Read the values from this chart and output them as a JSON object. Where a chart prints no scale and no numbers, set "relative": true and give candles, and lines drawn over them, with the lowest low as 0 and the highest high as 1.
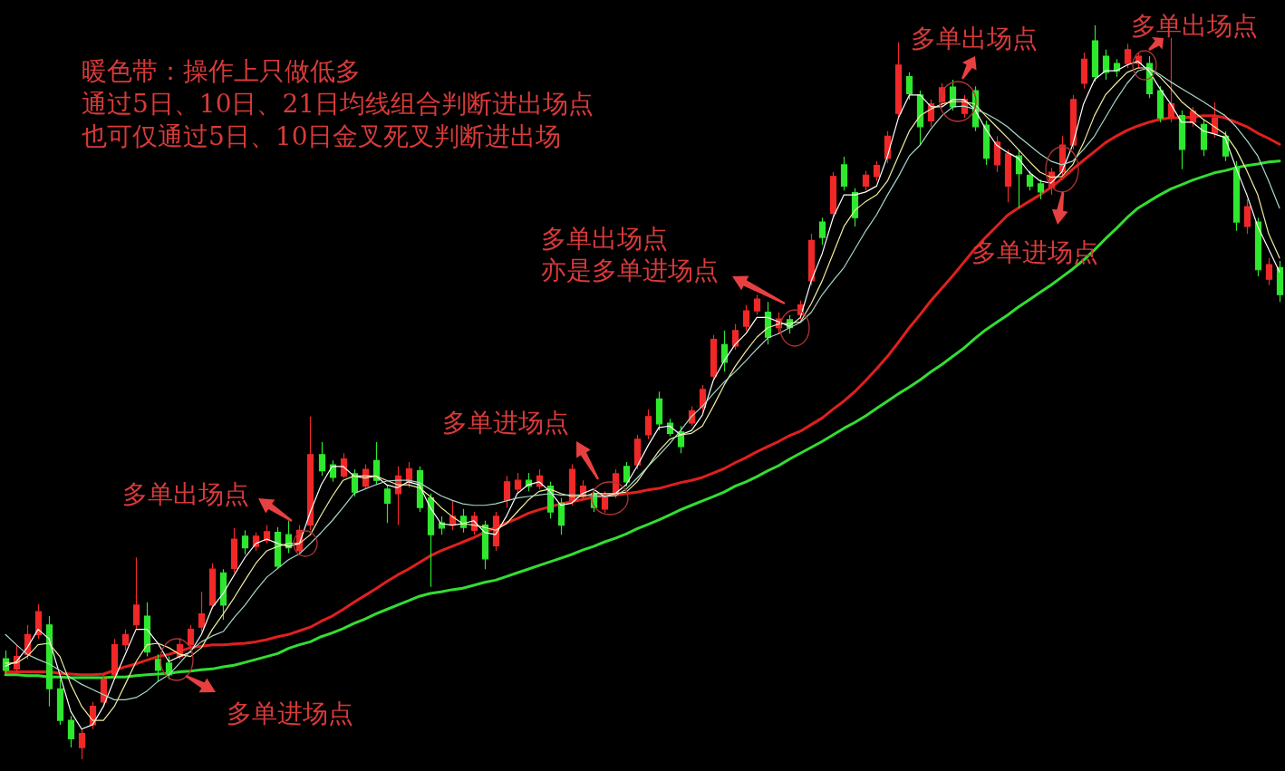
{
  "chart_data": {
    "type": "candlestick",
    "relative": true,
    "categories": [
      null,
      null,
      null,
      null,
      null,
      null,
      null,
      null,
      null,
      null,
      null,
      null,
      null,
      null,
      null,
      null,
      null,
      null,
      null,
      null,
      null,
      null,
      null,
      null,
      null,
      null,
      null,
      null,
      null,
      null,
      null,
      null,
      null,
      null,
      null,
      null,
      null,
      null,
      null,
      null,
      null,
      null,
      null,
      null,
      null,
      null,
      null,
      null,
      null,
      null,
      null,
      null,
      null,
      null,
      null,
      null,
      null,
      null,
      null,
      null,
      null,
      null,
      null,
      null,
      null,
      null,
      null,
      null,
      null,
      null,
      null,
      null,
      null,
      null,
      null,
      null,
      null,
      null,
      null,
      null,
      null,
      null,
      null,
      null,
      null,
      null,
      null,
      null,
      null,
      null,
      null,
      null,
      null,
      null,
      null,
      null,
      null,
      null,
      null,
      null,
      null,
      null,
      null,
      null,
      null,
      null,
      null,
      null,
      null,
      null,
      null,
      null,
      null,
      null,
      null,
      null,
      null,
      null
    ],
    "ohlc": [
      [
        0.137,
        0.148,
        0.115,
        0.121
      ],
      [
        0.123,
        0.156,
        0.119,
        0.14
      ],
      [
        0.143,
        0.183,
        0.136,
        0.17
      ],
      [
        0.17,
        0.211,
        0.164,
        0.201
      ],
      [
        0.183,
        0.195,
        0.072,
        0.096
      ],
      [
        0.096,
        0.109,
        0.047,
        0.053
      ],
      [
        0.053,
        0.059,
        0.016,
        0.028
      ],
      [
        0.016,
        0.041,
        0,
        0.035
      ],
      [
        0.047,
        0.078,
        0.041,
        0.072
      ],
      [
        0.078,
        0.115,
        0.072,
        0.109
      ],
      [
        0.115,
        0.164,
        0.109,
        0.156
      ],
      [
        0.156,
        0.177,
        0.148,
        0.17
      ],
      [
        0.183,
        0.275,
        0.177,
        0.21
      ],
      [
        0.195,
        0.214,
        0.14,
        0.146
      ],
      [
        0.136,
        0.143,
        0.106,
        0.121
      ],
      [
        0.131,
        0.14,
        0.109,
        0.115
      ],
      [
        0.14,
        0.165,
        0.136,
        0.156
      ],
      [
        0.156,
        0.183,
        0.151,
        0.177
      ],
      [
        0.18,
        0.228,
        0.174,
        0.198
      ],
      [
        0.21,
        0.267,
        0.205,
        0.259
      ],
      [
        0.254,
        0.259,
        0.19,
        0.21
      ],
      [
        0.26,
        0.315,
        0.254,
        0.3
      ],
      [
        0.304,
        0.312,
        0.279,
        0.288
      ],
      [
        0.29,
        0.309,
        0.284,
        0.304
      ],
      [
        0.298,
        0.319,
        0.294,
        0.31
      ],
      [
        0.309,
        0.316,
        0.259,
        0.263
      ],
      [
        0.306,
        0.325,
        0.281,
        0.288
      ],
      [
        0.284,
        0.319,
        0.279,
        0.312
      ],
      [
        0.319,
        0.467,
        0.312,
        0.415
      ],
      [
        0.415,
        0.432,
        0.386,
        0.393
      ],
      [
        0.401,
        0.407,
        0.378,
        0.384
      ],
      [
        0.386,
        0.417,
        0.383,
        0.409
      ],
      [
        0.389,
        0.395,
        0.358,
        0.364
      ],
      [
        0.372,
        0.402,
        0.368,
        0.395
      ],
      [
        0.407,
        0.432,
        0.375,
        0.38
      ],
      [
        0.368,
        0.374,
        0.322,
        0.349
      ],
      [
        0.362,
        0.399,
        0.319,
        0.386
      ],
      [
        0.377,
        0.405,
        0.37,
        0.396
      ],
      [
        0.393,
        0.399,
        0.337,
        0.343
      ],
      [
        0.356,
        0.362,
        0.235,
        0.306
      ],
      [
        0.322,
        0.331,
        0.306,
        0.315
      ],
      [
        0.319,
        0.352,
        0.312,
        0.331
      ],
      [
        0.331,
        0.341,
        0.309,
        0.316
      ],
      [
        0.312,
        0.337,
        0.306,
        0.331
      ],
      [
        0.319,
        0.325,
        0.259,
        0.273
      ],
      [
        0.291,
        0.337,
        0.284,
        0.331
      ],
      [
        0.353,
        0.386,
        0.343,
        0.378
      ],
      [
        0.368,
        0.39,
        0.362,
        0.38
      ],
      [
        0.38,
        0.39,
        0.365,
        0.372
      ],
      [
        0.372,
        0.395,
        0.368,
        0.386
      ],
      [
        0.372,
        0.378,
        0.328,
        0.337
      ],
      [
        0.349,
        0.356,
        0.306,
        0.319
      ],
      [
        0.352,
        0.402,
        0.346,
        0.395
      ],
      [
        0.358,
        0.38,
        0.353,
        0.372
      ],
      [
        0.362,
        0.368,
        0.337,
        0.343
      ],
      [
        0.341,
        0.365,
        0.336,
        0.358
      ],
      [
        0.362,
        0.395,
        0.356,
        0.389
      ],
      [
        0.399,
        0.405,
        0.372,
        0.378
      ],
      [
        0.401,
        0.442,
        0.395,
        0.436
      ],
      [
        0.442,
        0.477,
        0.436,
        0.467
      ],
      [
        0.491,
        0.501,
        0.448,
        0.457
      ],
      [
        0.458,
        0.464,
        0.44,
        0.444
      ],
      [
        0.446,
        0.454,
        0.417,
        0.426
      ],
      [
        0.458,
        0.481,
        0.454,
        0.475
      ],
      [
        0.479,
        0.51,
        0.473,
        0.504
      ],
      [
        0.522,
        0.578,
        0.516,
        0.572
      ],
      [
        0.565,
        0.584,
        0.528,
        0.541
      ],
      [
        0.563,
        0.593,
        0.558,
        0.584
      ],
      [
        0.59,
        0.619,
        0.584,
        0.611
      ],
      [
        0.611,
        0.633,
        0.606,
        0.627
      ],
      [
        0.609,
        0.623,
        0.565,
        0.575
      ],
      [
        0.588,
        0.609,
        0.58,
        0.6
      ],
      [
        0.599,
        0.605,
        0.58,
        0.588
      ],
      [
        0.606,
        0.625,
        0.6,
        0.619
      ],
      [
        0.652,
        0.716,
        0.646,
        0.707
      ],
      [
        0.732,
        0.738,
        0.701,
        0.711
      ],
      [
        0.744,
        0.8,
        0.738,
        0.794
      ],
      [
        0.81,
        0.821,
        0.775,
        0.781
      ],
      [
        0.772,
        0.778,
        0.726,
        0.738
      ],
      [
        0.781,
        0.802,
        0.775,
        0.796
      ],
      [
        0.794,
        0.815,
        0.788,
        0.809
      ],
      [
        0.819,
        0.856,
        0.812,
        0.849
      ],
      [
        0.88,
        0.977,
        0.874,
        0.946
      ],
      [
        0.93,
        0.936,
        0.899,
        0.907
      ],
      [
        0.905,
        0.911,
        0.837,
        0.862
      ],
      [
        0.87,
        0.899,
        0.862,
        0.893
      ],
      [
        0.896,
        0.921,
        0.89,
        0.915
      ],
      [
        0.916,
        0.926,
        0.884,
        0.889
      ],
      [
        0.88,
        0.905,
        0.874,
        0.899
      ],
      [
        0.911,
        0.917,
        0.856,
        0.862
      ],
      [
        0.864,
        0.87,
        0.81,
        0.819
      ],
      [
        0.81,
        0.849,
        0.8,
        0.841
      ],
      [
        0.781,
        0.831,
        0.759,
        0.825
      ],
      [
        0.822,
        0.831,
        0.751,
        0.798
      ],
      [
        0.796,
        0.802,
        0.775,
        0.781
      ],
      [
        0.784,
        0.79,
        0.763,
        0.773
      ],
      [
        0.779,
        0.806,
        0.769,
        0.8
      ],
      [
        0.8,
        0.849,
        0.794,
        0.837
      ],
      [
        0.837,
        0.905,
        0.831,
        0.899
      ],
      [
        0.921,
        0.963,
        0.914,
        0.954
      ],
      [
        0.979,
        1,
        0.923,
        0.93
      ],
      [
        0.958,
        0.967,
        0.926,
        0.936
      ],
      [
        0.948,
        0.954,
        0.93,
        0.938
      ],
      [
        0.948,
        0.975,
        0.942,
        0.967
      ],
      [
        0.948,
        0.963,
        0.941,
        0.958
      ],
      [
        0.948,
        0.958,
        0.901,
        0.907
      ],
      [
        0.911,
        0.917,
        0.868,
        0.874
      ],
      [
        0.874,
        0.983,
        0.868,
        0.893
      ],
      [
        0.877,
        0.884,
        0.804,
        0.831
      ],
      [
        0.868,
        0.889,
        0.862,
        0.883
      ],
      [
        0.865,
        0.872,
        0.822,
        0.831
      ],
      [
        0.853,
        0.895,
        0.847,
        0.874
      ],
      [
        0.849,
        0.856,
        0.815,
        0.822
      ],
      [
        0.806,
        0.815,
        0.72,
        0.732
      ],
      [
        0.726,
        0.763,
        0.716,
        0.753
      ],
      [
        0.732,
        0.738,
        0.658,
        0.667
      ],
      [
        0.654,
        0.683,
        0.646,
        0.674
      ],
      [
        0.67,
        0.679,
        0.623,
        0.633
      ]
    ],
    "colors": [
      "#2ee82e",
      "#f02828",
      "#f02828",
      "#f02828",
      "#2ee82e",
      "#2ee82e",
      "#2ee82e",
      "#f02828",
      "#f02828",
      "#f02828",
      "#f02828",
      "#f02828",
      "#f02828",
      "#2ee82e",
      "#2ee82e",
      "#2ee82e",
      "#f02828",
      "#f02828",
      "#f02828",
      "#f02828",
      "#2ee82e",
      "#f02828",
      "#2ee82e",
      "#f02828",
      "#f02828",
      "#2ee82e",
      "#2ee82e",
      "#f02828",
      "#f02828",
      "#2ee82e",
      "#2ee82e",
      "#f02828",
      "#2ee82e",
      "#f02828",
      "#2ee82e",
      "#2ee82e",
      "#f02828",
      "#f02828",
      "#2ee82e",
      "#2ee82e",
      "#2ee82e",
      "#f02828",
      "#2ee82e",
      "#f02828",
      "#2ee82e",
      "#f02828",
      "#f02828",
      "#f02828",
      "#2ee82e",
      "#f02828",
      "#2ee82e",
      "#2ee82e",
      "#f02828",
      "#f02828",
      "#2ee82e",
      "#f02828",
      "#f02828",
      "#2ee82e",
      "#f02828",
      "#f02828",
      "#2ee82e",
      "#2ee82e",
      "#2ee82e",
      "#f02828",
      "#f02828",
      "#f02828",
      "#2ee82e",
      "#f02828",
      "#f02828",
      "#f02828",
      "#2ee82e",
      "#f02828",
      "#2ee82e",
      "#f02828",
      "#f02828",
      "#2ee82e",
      "#f02828",
      "#2ee82e",
      "#2ee82e",
      "#f02828",
      "#f02828",
      "#f02828",
      "#f02828",
      "#2ee82e",
      "#2ee82e",
      "#f02828",
      "#f02828",
      "#2ee82e",
      "#f02828",
      "#2ee82e",
      "#2ee82e",
      "#f02828",
      "#f02828",
      "#2ee82e",
      "#2ee82e",
      "#2ee82e",
      "#f02828",
      "#f02828",
      "#f02828",
      "#f02828",
      "#2ee82e",
      "#2ee82e",
      "#2ee82e",
      "#f02828",
      "#f02828",
      "#2ee82e",
      "#2ee82e",
      "#f02828",
      "#2ee82e",
      "#f02828",
      "#2ee82e",
      "#f02828",
      "#2ee82e",
      "#2ee82e",
      "#f02828",
      "#2ee82e",
      "#f02828",
      "#2ee82e"
    ],
    "series": [
      {
        "type": "line",
        "color": "#e0201e",
        "values": [
          0.119,
          0.119,
          0.119,
          0.119,
          0.119,
          0.117,
          0.116,
          0.115,
          0.115,
          0.116,
          0.121,
          0.126,
          0.13,
          0.135,
          0.14,
          0.143,
          0.147,
          0.152,
          0.154,
          0.156,
          0.156,
          0.157,
          0.158,
          0.16,
          0.163,
          0.167,
          0.17,
          0.175,
          0.18,
          0.188,
          0.195,
          0.204,
          0.214,
          0.223,
          0.232,
          0.242,
          0.251,
          0.259,
          0.268,
          0.277,
          0.284,
          0.29,
          0.296,
          0.302,
          0.309,
          0.316,
          0.322,
          0.328,
          0.335,
          0.34,
          0.344,
          0.348,
          0.351,
          0.354,
          0.357,
          0.359,
          0.36,
          0.362,
          0.364,
          0.367,
          0.369,
          0.373,
          0.377,
          0.38,
          0.384,
          0.39,
          0.396,
          0.404,
          0.411,
          0.419,
          0.426,
          0.433,
          0.441,
          0.447,
          0.456,
          0.465,
          0.477,
          0.488,
          0.501,
          0.516,
          0.532,
          0.549,
          0.568,
          0.588,
          0.606,
          0.625,
          0.642,
          0.659,
          0.677,
          0.695,
          0.711,
          0.726,
          0.741,
          0.751,
          0.76,
          0.769,
          0.779,
          0.791,
          0.804,
          0.816,
          0.828,
          0.84,
          0.849,
          0.857,
          0.863,
          0.868,
          0.872,
          0.874,
          0.874,
          0.875,
          0.877,
          0.877,
          0.874,
          0.868,
          0.862,
          0.853,
          0.846,
          0.838
        ]
      },
      {
        "type": "line",
        "color": "#33dd33",
        "values": [
          0.115,
          0.115,
          0.114,
          0.114,
          0.112,
          0.112,
          0.111,
          0.111,
          0.111,
          0.111,
          0.112,
          0.112,
          0.114,
          0.115,
          0.116,
          0.117,
          0.119,
          0.12,
          0.122,
          0.123,
          0.126,
          0.128,
          0.132,
          0.136,
          0.14,
          0.144,
          0.151,
          0.156,
          0.16,
          0.167,
          0.172,
          0.178,
          0.185,
          0.191,
          0.198,
          0.204,
          0.21,
          0.216,
          0.222,
          0.226,
          0.228,
          0.231,
          0.233,
          0.237,
          0.241,
          0.244,
          0.249,
          0.254,
          0.259,
          0.264,
          0.269,
          0.274,
          0.279,
          0.285,
          0.29,
          0.296,
          0.301,
          0.307,
          0.314,
          0.32,
          0.326,
          0.333,
          0.34,
          0.346,
          0.352,
          0.358,
          0.364,
          0.372,
          0.378,
          0.385,
          0.393,
          0.4,
          0.409,
          0.417,
          0.425,
          0.433,
          0.442,
          0.451,
          0.459,
          0.468,
          0.478,
          0.488,
          0.498,
          0.507,
          0.517,
          0.528,
          0.538,
          0.549,
          0.56,
          0.573,
          0.585,
          0.595,
          0.605,
          0.616,
          0.626,
          0.636,
          0.646,
          0.657,
          0.668,
          0.68,
          0.694,
          0.709,
          0.723,
          0.738,
          0.751,
          0.76,
          0.769,
          0.777,
          0.783,
          0.789,
          0.794,
          0.799,
          0.802,
          0.806,
          0.809,
          0.811,
          0.814,
          0.815
        ]
      },
      {
        "type": "line",
        "color": "#ffffff",
        "values": [
          0.127,
          0.133,
          0.152,
          0.177,
          0.164,
          0.115,
          0.065,
          0.041,
          0.047,
          0.072,
          0.109,
          0.143,
          0.177,
          0.177,
          0.158,
          0.133,
          0.14,
          0.146,
          0.17,
          0.207,
          0.226,
          0.251,
          0.275,
          0.294,
          0.3,
          0.294,
          0.29,
          0.294,
          0.337,
          0.374,
          0.399,
          0.399,
          0.386,
          0.383,
          0.386,
          0.374,
          0.37,
          0.378,
          0.374,
          0.343,
          0.321,
          0.319,
          0.321,
          0.325,
          0.309,
          0.306,
          0.331,
          0.362,
          0.374,
          0.378,
          0.365,
          0.346,
          0.349,
          0.362,
          0.368,
          0.358,
          0.362,
          0.374,
          0.399,
          0.427,
          0.452,
          0.454,
          0.442,
          0.448,
          0.469,
          0.516,
          0.543,
          0.565,
          0.58,
          0.602,
          0.602,
          0.596,
          0.59,
          0.602,
          0.652,
          0.689,
          0.738,
          0.769,
          0.769,
          0.773,
          0.781,
          0.822,
          0.874,
          0.905,
          0.905,
          0.889,
          0.889,
          0.899,
          0.899,
          0.886,
          0.859,
          0.837,
          0.827,
          0.819,
          0.8,
          0.788,
          0.785,
          0.8,
          0.837,
          0.893,
          0.926,
          0.938,
          0.938,
          0.946,
          0.951,
          0.938,
          0.914,
          0.893,
          0.868,
          0.868,
          0.856,
          0.852,
          0.847,
          0.806,
          0.769,
          0.726,
          0.695,
          0.664
        ]
      },
      {
        "type": "line",
        "color": "#f2eea0",
        "values": [
          0.131,
          0.131,
          0.14,
          0.156,
          0.158,
          0.14,
          0.102,
          0.072,
          0.053,
          0.053,
          0.072,
          0.102,
          0.133,
          0.156,
          0.158,
          0.152,
          0.143,
          0.14,
          0.152,
          0.177,
          0.198,
          0.22,
          0.244,
          0.267,
          0.284,
          0.29,
          0.294,
          0.294,
          0.306,
          0.333,
          0.358,
          0.38,
          0.386,
          0.386,
          0.386,
          0.38,
          0.374,
          0.374,
          0.37,
          0.358,
          0.343,
          0.331,
          0.321,
          0.319,
          0.316,
          0.312,
          0.321,
          0.337,
          0.353,
          0.365,
          0.368,
          0.362,
          0.358,
          0.358,
          0.362,
          0.362,
          0.362,
          0.364,
          0.378,
          0.399,
          0.42,
          0.436,
          0.442,
          0.444,
          0.454,
          0.481,
          0.51,
          0.535,
          0.556,
          0.575,
          0.588,
          0.593,
          0.594,
          0.596,
          0.621,
          0.652,
          0.689,
          0.726,
          0.748,
          0.76,
          0.769,
          0.788,
          0.822,
          0.856,
          0.877,
          0.886,
          0.893,
          0.896,
          0.896,
          0.893,
          0.877,
          0.862,
          0.847,
          0.831,
          0.815,
          0.8,
          0.793,
          0.794,
          0.81,
          0.84,
          0.877,
          0.905,
          0.921,
          0.936,
          0.942,
          0.942,
          0.93,
          0.914,
          0.896,
          0.884,
          0.872,
          0.862,
          0.852,
          0.831,
          0.802,
          0.769,
          0.716,
          0.683
        ]
      },
      {
        "type": "line",
        "color": "#a8d8c8",
        "values": [
          0.17,
          0.156,
          0.143,
          0.136,
          0.13,
          0.121,
          0.111,
          0.102,
          0.095,
          0.088,
          0.081,
          0.081,
          0.084,
          0.093,
          0.106,
          0.115,
          0.131,
          0.148,
          0.16,
          0.168,
          0.174,
          0.193,
          0.21,
          0.23,
          0.248,
          0.26,
          0.272,
          0.28,
          0.294,
          0.309,
          0.325,
          0.343,
          0.362,
          0.368,
          0.374,
          0.379,
          0.38,
          0.38,
          0.377,
          0.368,
          0.359,
          0.353,
          0.348,
          0.346,
          0.346,
          0.348,
          0.352,
          0.356,
          0.358,
          0.36,
          0.362,
          0.36,
          0.36,
          0.36,
          0.359,
          0.358,
          0.359,
          0.368,
          0.383,
          0.399,
          0.414,
          0.43,
          0.448,
          0.467,
          0.481,
          0.498,
          0.514,
          0.528,
          0.543,
          0.559,
          0.574,
          0.58,
          0.588,
          0.595,
          0.609,
          0.633,
          0.652,
          0.67,
          0.695,
          0.72,
          0.742,
          0.769,
          0.794,
          0.822,
          0.837,
          0.859,
          0.877,
          0.889,
          0.89,
          0.886,
          0.88,
          0.872,
          0.862,
          0.849,
          0.837,
          0.825,
          0.815,
          0.81,
          0.815,
          0.831,
          0.849,
          0.874,
          0.899,
          0.921,
          0.938,
          0.942,
          0.933,
          0.923,
          0.914,
          0.905,
          0.896,
          0.886,
          0.877,
          0.862,
          0.843,
          0.822,
          0.788,
          0.751
        ]
      }
    ],
    "annotations": [
      "暖色带：操作上只做低多",
      "通过5日、10日、21日均线组合判断进出场点",
      "也可仅通过5日、10日金叉死叉判断进出场",
      "多单进场点",
      "多单出场点",
      "多单进场点",
      "多单出场点",
      "亦是多单进场点",
      "多单出场点",
      "多单进场点",
      "多单出场点"
    ]
  }
}
